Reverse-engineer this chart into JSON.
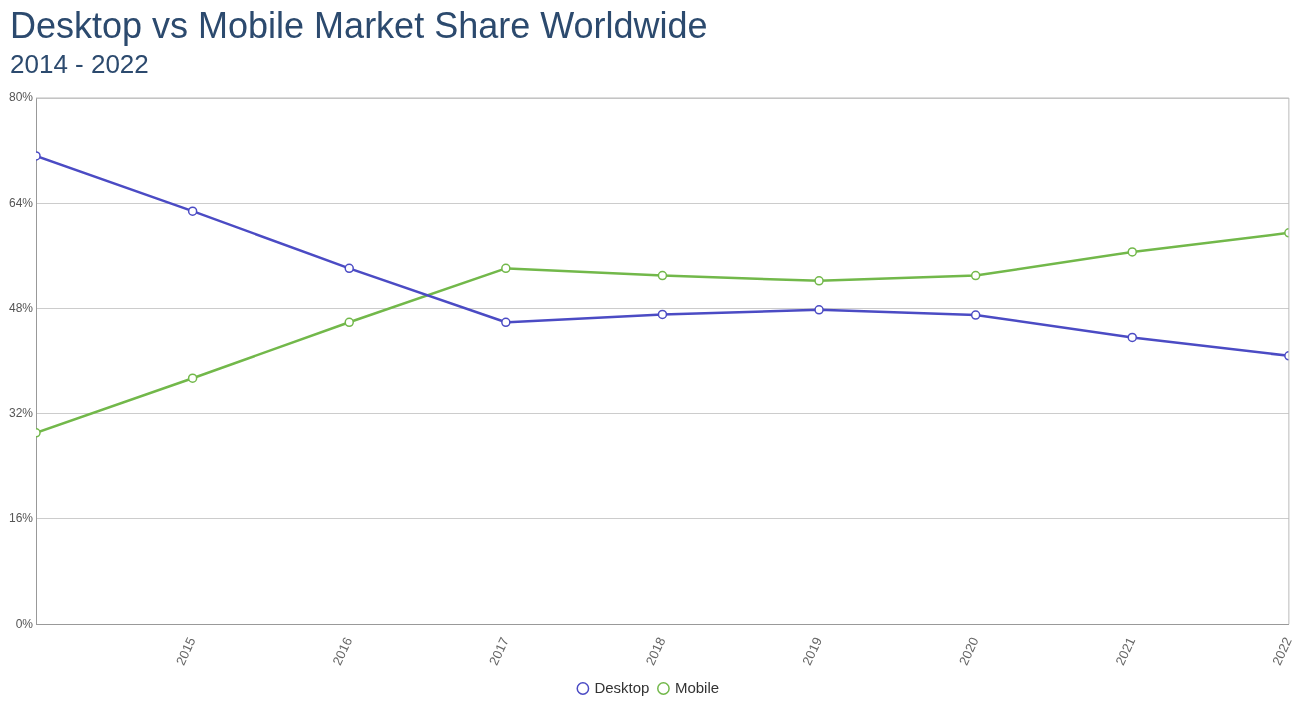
{
  "chart_data": {
    "type": "line",
    "title": "Desktop vs Mobile Market Share Worldwide",
    "subtitle": "2014 - 2022",
    "x": [
      2014,
      2015,
      2016,
      2017,
      2018,
      2019,
      2020,
      2021,
      2022
    ],
    "series": [
      {
        "name": "Desktop",
        "color": "#4b4bc4",
        "values": [
          71.2,
          62.8,
          54.1,
          45.9,
          47.1,
          47.8,
          47.0,
          43.6,
          40.8
        ]
      },
      {
        "name": "Mobile",
        "color": "#72b84a",
        "values": [
          29.1,
          37.4,
          45.9,
          54.1,
          53.0,
          52.2,
          53.0,
          56.6,
          59.5
        ]
      }
    ],
    "xlim": [
      2014,
      2022
    ],
    "xticks": [
      2015,
      2016,
      2017,
      2018,
      2019,
      2020,
      2021,
      2022
    ],
    "ylim": [
      0,
      80
    ],
    "yticks": [
      {
        "value": 0,
        "label": "0%"
      },
      {
        "value": 16,
        "label": "16%"
      },
      {
        "value": 32,
        "label": "32%"
      },
      {
        "value": 48,
        "label": "48%"
      },
      {
        "value": 64,
        "label": "64%"
      },
      {
        "value": 80,
        "label": "80%"
      }
    ],
    "grid": "y",
    "legend": "bottom",
    "marker": "circle",
    "line_style": "solid"
  }
}
